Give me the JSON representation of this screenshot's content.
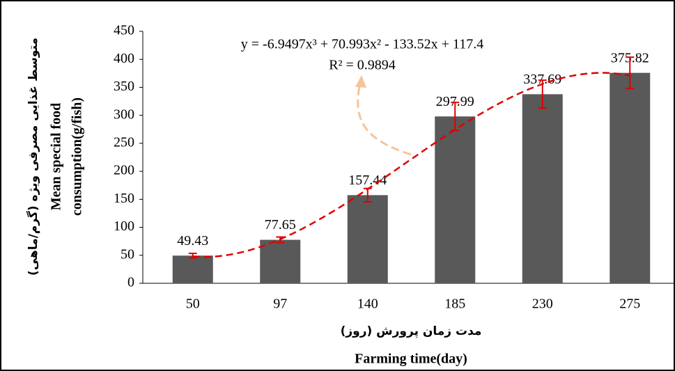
{
  "chart_data": {
    "type": "bar",
    "y_title_fa": "متوسط غذایی مصرفی ویژه (گرم/ماهی)",
    "y_title_en": [
      "Mean special food",
      "consumption(g/fish)"
    ],
    "x_title_fa": "مدت زمان پرورش (روز)",
    "x_title_en": "Farming time(day)",
    "categories": [
      "50",
      "97",
      "140",
      "185",
      "230",
      "275"
    ],
    "values": [
      49.43,
      77.65,
      157.44,
      297.99,
      337.69,
      375.82
    ],
    "errors": [
      4,
      5,
      12,
      25,
      25,
      28
    ],
    "color": "#595959",
    "error_color": "#e00000",
    "ylim": [
      0,
      450
    ],
    "yticks": [
      0,
      50,
      100,
      150,
      200,
      250,
      300,
      350,
      400,
      450
    ],
    "trendline": {
      "equation": "y = -6.9497x³ + 70.993x² - 133.52x + 117.4",
      "r_squared": "R² = 0.9894",
      "coefficients": [
        -6.9497,
        70.993,
        -133.52,
        117.4
      ],
      "color": "#e00000"
    }
  }
}
